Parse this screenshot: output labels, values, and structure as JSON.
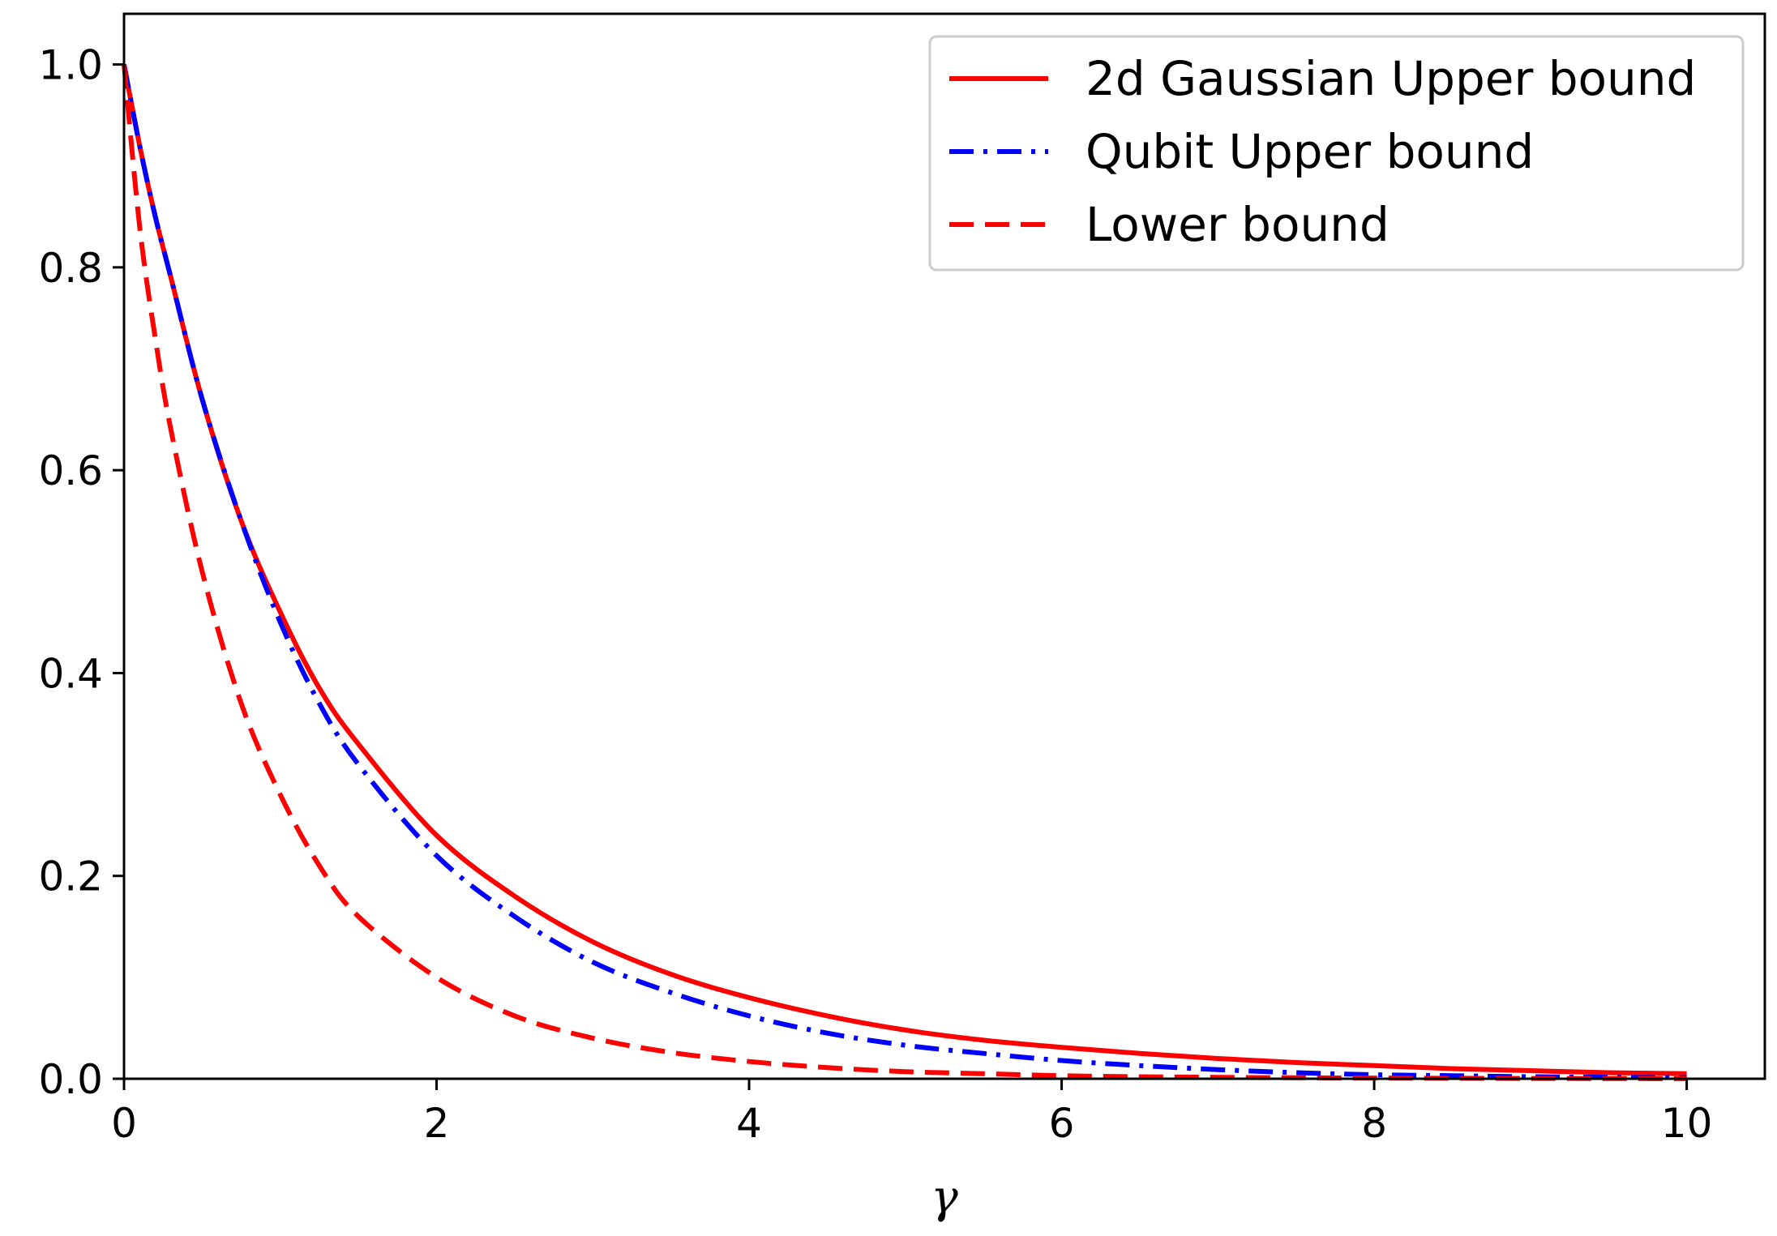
{
  "chart_data": {
    "type": "line",
    "title": "",
    "xlabel": "γ",
    "ylabel": "",
    "xlim": [
      0,
      10.5
    ],
    "ylim": [
      0,
      1.05
    ],
    "xticks": [
      0,
      2,
      4,
      6,
      8,
      10
    ],
    "xtick_labels": [
      "0",
      "2",
      "4",
      "6",
      "8",
      "10"
    ],
    "yticks": [
      0.0,
      0.2,
      0.4,
      0.6,
      0.8,
      1.0
    ],
    "ytick_labels": [
      "0.0",
      "0.2",
      "0.4",
      "0.6",
      "0.8",
      "1.0"
    ],
    "grid": false,
    "legend_position": "top-right",
    "x": [
      0,
      0.1,
      0.2,
      0.3,
      0.5,
      0.75,
      1,
      1.25,
      1.5,
      2,
      2.5,
      3,
      3.5,
      4,
      4.5,
      5,
      5.5,
      6,
      6.5,
      7,
      7.5,
      8,
      8.5,
      9,
      9.5,
      10
    ],
    "series": [
      {
        "name": "2d Gaussian Upper bound",
        "color": "#ff0000",
        "style": "solid",
        "values": [
          1.0,
          0.92,
          0.85,
          0.79,
          0.67,
          0.55,
          0.46,
          0.385,
          0.33,
          0.24,
          0.18,
          0.135,
          0.103,
          0.08,
          0.062,
          0.048,
          0.038,
          0.031,
          0.025,
          0.02,
          0.016,
          0.013,
          0.01,
          0.008,
          0.006,
          0.005
        ]
      },
      {
        "name": "Qubit Upper bound",
        "color": "#0000ff",
        "style": "dashdot",
        "values": [
          1.0,
          0.92,
          0.85,
          0.79,
          0.67,
          0.55,
          0.45,
          0.37,
          0.31,
          0.22,
          0.16,
          0.115,
          0.085,
          0.062,
          0.045,
          0.033,
          0.025,
          0.018,
          0.013,
          0.009,
          0.006,
          0.004,
          0.003,
          0.002,
          0.0015,
          0.001
        ]
      },
      {
        "name": "Lower bound",
        "color": "#ff0000",
        "style": "dashed",
        "values": [
          1.0,
          0.84,
          0.73,
          0.64,
          0.5,
          0.37,
          0.28,
          0.21,
          0.16,
          0.1,
          0.062,
          0.04,
          0.026,
          0.017,
          0.011,
          0.007,
          0.005,
          0.003,
          0.002,
          0.0014,
          0.001,
          0.0007,
          0.0005,
          0.0003,
          0.0002,
          0.0001
        ]
      }
    ]
  }
}
